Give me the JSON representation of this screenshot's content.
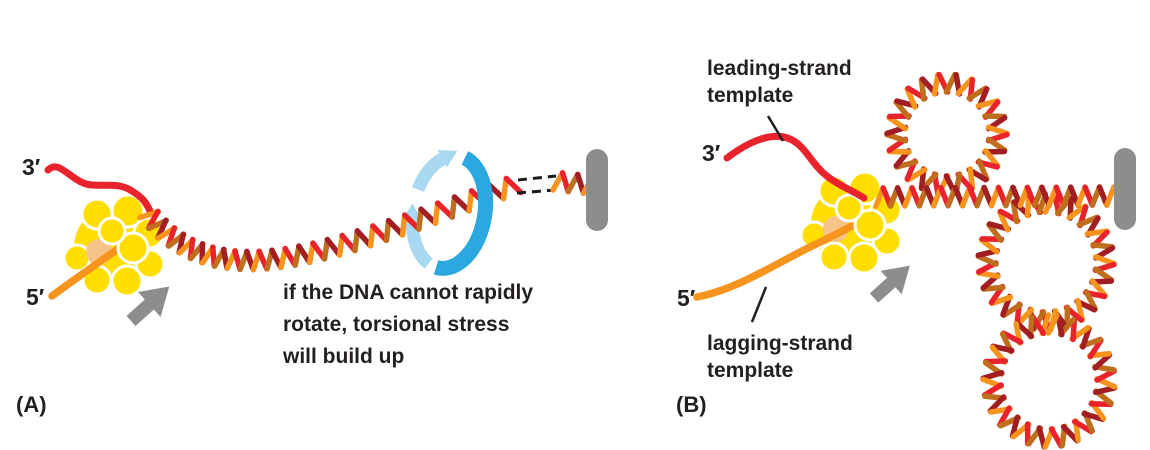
{
  "figure": {
    "panel_a": {
      "panel_label": "(A)",
      "three_prime": "3′",
      "five_prime": "5′",
      "caption": "if the DNA cannot rapidly\nrotate, torsional stress\nwill build up"
    },
    "panel_b": {
      "panel_label": "(B)",
      "three_prime": "3′",
      "five_prime": "5′",
      "leading_label": "leading-strand\ntemplate",
      "lagging_label": "lagging-strand\ntemplate"
    }
  },
  "icons": {
    "rotation_arrow": "rotation-arrow-icon",
    "fork_movement_arrow": "fork-movement-arrow-icon",
    "anchor_bar": "anchor-bar",
    "polymerase_blob": "dna-polymerase-blob"
  },
  "colors": {
    "red": "#E8232B",
    "red_dark": "#A21E22",
    "orange": "#F7941E",
    "orange_dark": "#BF6E1D",
    "yellow": "#FFDE00",
    "peach": "#F6C489",
    "gray": "#8B8D8E",
    "blue_dark": "#2BA8E0",
    "blue_light": "#A9D8F2",
    "dash": "#1A1A1A",
    "text": "#231F20"
  }
}
